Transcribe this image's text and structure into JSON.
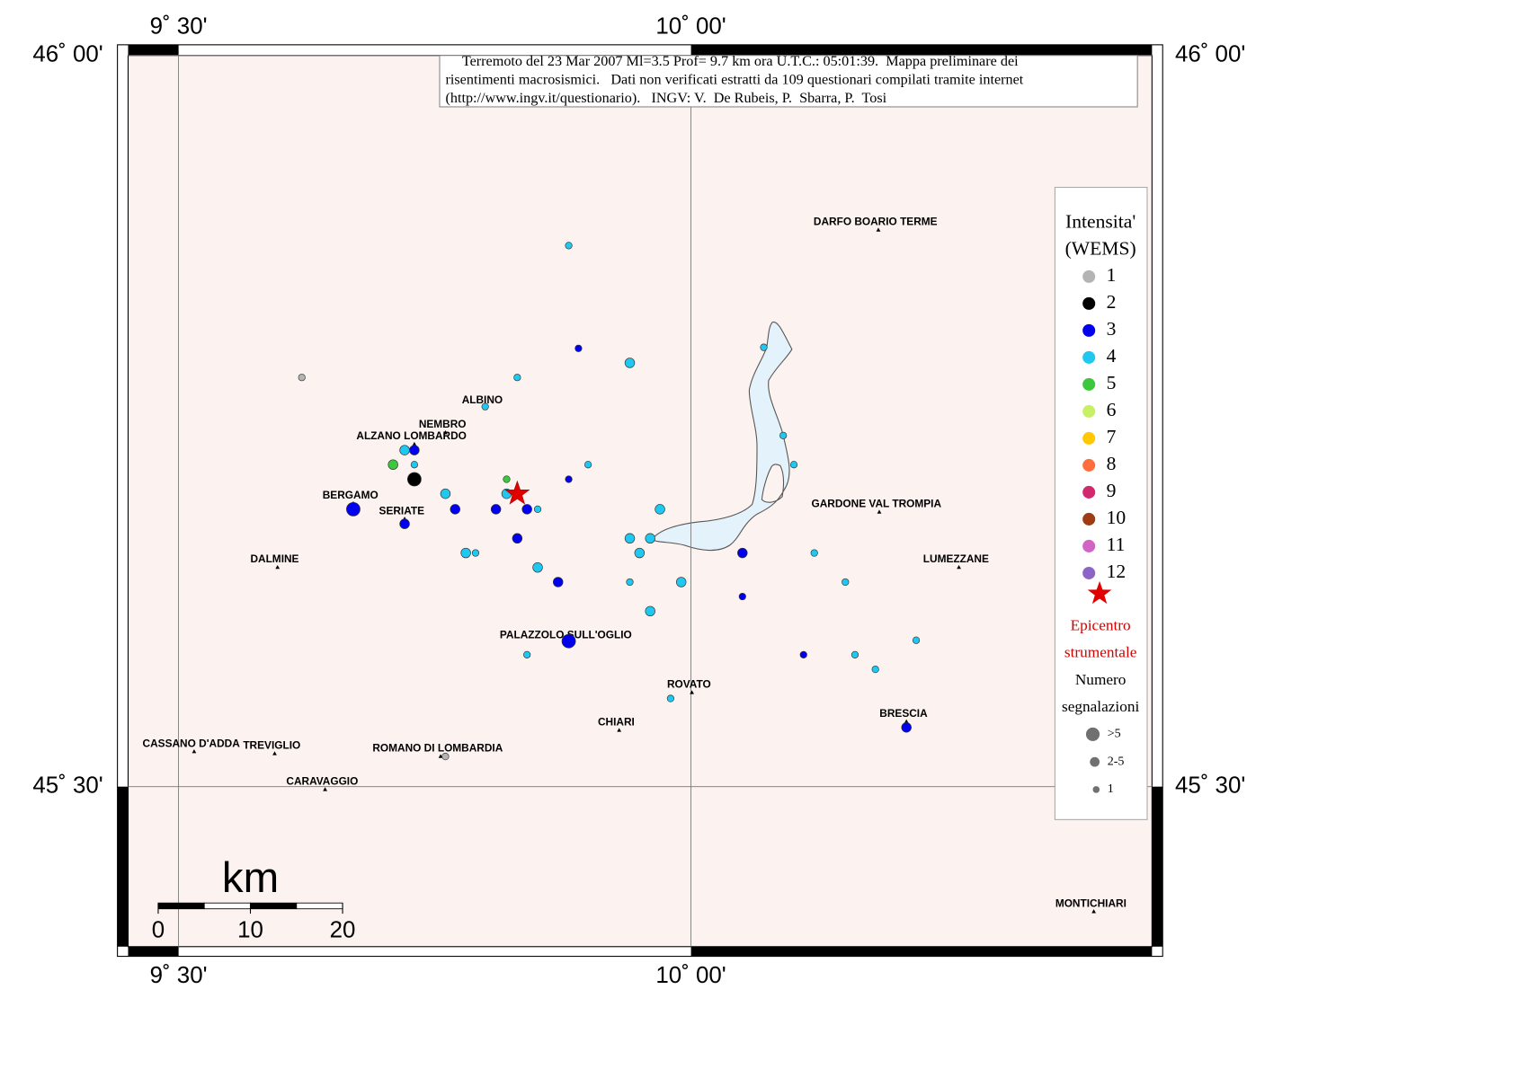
{
  "map": {
    "title": [
      "Terremoto del 23 Mar 2007 Ml=3.5 Prof= 9.7 km ora U.T.C.: 05:01:39.  Mappa preliminare dei",
      "risentimenti macrosismici.   Dati non verificati estratti da 109 questionari compilati tramite internet",
      "(http://www.ingv.it/questionario).   INGV: V.  De Rubeis, P.  Sbarra, P.  Tosi"
    ],
    "xlim": [
      9.4508,
      10.4498
    ],
    "ylim": [
      45.3906,
      46.0
    ],
    "xticks": [
      {
        "value": 9.5,
        "label": "9˚ 30'"
      },
      {
        "value": 10,
        "label": "10˚ 00'"
      }
    ],
    "yticks": [
      {
        "value": 45.5,
        "label": "45˚ 30'"
      },
      {
        "value": 46,
        "label": "46˚ 00'"
      }
    ],
    "grid": true,
    "scale": {
      "label": "km",
      "ticks": [
        0,
        10,
        20
      ]
    },
    "legend": {
      "title": [
        "Intensita'",
        "(WEMS)"
      ],
      "levels": [
        {
          "value": 1,
          "color": "#b4b4b4"
        },
        {
          "value": 2,
          "color": "#000000"
        },
        {
          "value": 3,
          "color": "#0000ee"
        },
        {
          "value": 4,
          "color": "#1ec8f0"
        },
        {
          "value": 5,
          "color": "#3cc83c"
        },
        {
          "value": 6,
          "color": "#c8f064"
        },
        {
          "value": 7,
          "color": "#ffc800"
        },
        {
          "value": 8,
          "color": "#ff6e3c"
        },
        {
          "value": 9,
          "color": "#d2286e"
        },
        {
          "value": 10,
          "color": "#a03c14"
        },
        {
          "value": 11,
          "color": "#d264c8"
        },
        {
          "value": 12,
          "color": "#8c64c8"
        }
      ],
      "epicenter": [
        "Epicentro",
        "strumentale"
      ],
      "count_title": [
        "Numero",
        "segnalazioni"
      ],
      "counts": [
        ">5",
        "2-5",
        "1"
      ]
    },
    "epicenter": {
      "lon": 9.8305,
      "lat": 45.7003
    },
    "places": [
      {
        "name": "DARFO BOARIO TERME",
        "lon": 10.1828,
        "lat": 45.8806
      },
      {
        "name": "ALBINO",
        "lon": 9.7992,
        "lat": 45.7586
      },
      {
        "name": "NEMBRO",
        "lon": 9.7604,
        "lat": 45.742
      },
      {
        "name": "ALZANO LOMBARDO",
        "lon": 9.7301,
        "lat": 45.7341
      },
      {
        "name": "BERGAMO",
        "lon": 9.6705,
        "lat": 45.6936
      },
      {
        "name": "SERIATE",
        "lon": 9.7206,
        "lat": 45.683
      },
      {
        "name": "GARDONE VAL TROMPIA",
        "lon": 10.1837,
        "lat": 45.6877
      },
      {
        "name": "DALMINE",
        "lon": 9.5966,
        "lat": 45.6499
      },
      {
        "name": "LUMEZZANE",
        "lon": 10.2614,
        "lat": 45.6499
      },
      {
        "name": "PALAZZOLO SULL'OGLIO",
        "lon": 9.8807,
        "lat": 45.5981
      },
      {
        "name": "ROVATO",
        "lon": 10.0009,
        "lat": 45.5643
      },
      {
        "name": "CHIARI",
        "lon": 9.9299,
        "lat": 45.5385
      },
      {
        "name": "BRESCIA",
        "lon": 10.2102,
        "lat": 45.5444
      },
      {
        "name": "CASSANO D'ADDA",
        "lon": 9.5152,
        "lat": 45.5239
      },
      {
        "name": "TREVIGLIO",
        "lon": 9.5938,
        "lat": 45.5225
      },
      {
        "name": "ROMANO DI LOMBARDIA",
        "lon": 9.7557,
        "lat": 45.5206
      },
      {
        "name": "CARAVAGGIO",
        "lon": 9.643,
        "lat": 45.498
      },
      {
        "name": "MONTICHIARI",
        "lon": 10.393,
        "lat": 45.4145
      }
    ],
    "observations": [
      {
        "lon": 9.8807,
        "lat": 45.87,
        "intensity": 4,
        "reports": "1"
      },
      {
        "lon": 9.8902,
        "lat": 45.7997,
        "intensity": 3,
        "reports": "1"
      },
      {
        "lon": 9.9403,
        "lat": 45.7898,
        "intensity": 4,
        "reports": "2-5"
      },
      {
        "lon": 9.8305,
        "lat": 45.7798,
        "intensity": 4,
        "reports": "1"
      },
      {
        "lon": 9.6203,
        "lat": 45.7798,
        "intensity": 1,
        "reports": "1"
      },
      {
        "lon": 9.7992,
        "lat": 45.7599,
        "intensity": 4,
        "reports": "1"
      },
      {
        "lon": 10.071,
        "lat": 45.8004,
        "intensity": 4,
        "reports": "1"
      },
      {
        "lon": 9.7301,
        "lat": 45.7301,
        "intensity": 3,
        "reports": "2-5"
      },
      {
        "lon": 9.7206,
        "lat": 45.7301,
        "intensity": 4,
        "reports": "2-5"
      },
      {
        "lon": 9.7301,
        "lat": 45.7202,
        "intensity": 4,
        "reports": "1"
      },
      {
        "lon": 9.7093,
        "lat": 45.7202,
        "intensity": 5,
        "reports": "2-5"
      },
      {
        "lon": 9.7301,
        "lat": 45.7102,
        "intensity": 2,
        "reports": ">5"
      },
      {
        "lon": 9.8201,
        "lat": 45.7102,
        "intensity": 5,
        "reports": "1"
      },
      {
        "lon": 9.8807,
        "lat": 45.7102,
        "intensity": 3,
        "reports": "1"
      },
      {
        "lon": 9.8996,
        "lat": 45.7202,
        "intensity": 4,
        "reports": "1"
      },
      {
        "lon": 10.09,
        "lat": 45.7401,
        "intensity": 4,
        "reports": "1"
      },
      {
        "lon": 10.1004,
        "lat": 45.7202,
        "intensity": 4,
        "reports": "1"
      },
      {
        "lon": 9.7604,
        "lat": 45.7003,
        "intensity": 4,
        "reports": "2-5"
      },
      {
        "lon": 9.8201,
        "lat": 45.7003,
        "intensity": 4,
        "reports": "2-5"
      },
      {
        "lon": 9.6705,
        "lat": 45.6897,
        "intensity": 3,
        "reports": ">5"
      },
      {
        "lon": 9.7699,
        "lat": 45.6897,
        "intensity": 3,
        "reports": "2-5"
      },
      {
        "lon": 9.8097,
        "lat": 45.6897,
        "intensity": 3,
        "reports": "2-5"
      },
      {
        "lon": 9.84,
        "lat": 45.6897,
        "intensity": 3,
        "reports": "2-5"
      },
      {
        "lon": 9.8504,
        "lat": 45.6897,
        "intensity": 4,
        "reports": "1"
      },
      {
        "lon": 9.9697,
        "lat": 45.6897,
        "intensity": 4,
        "reports": "2-5"
      },
      {
        "lon": 9.7206,
        "lat": 45.6797,
        "intensity": 3,
        "reports": "2-5"
      },
      {
        "lon": 9.8305,
        "lat": 45.6698,
        "intensity": 3,
        "reports": "2-5"
      },
      {
        "lon": 9.9403,
        "lat": 45.6698,
        "intensity": 4,
        "reports": "2-5"
      },
      {
        "lon": 9.9602,
        "lat": 45.6698,
        "intensity": 4,
        "reports": "2-5"
      },
      {
        "lon": 9.7803,
        "lat": 45.6598,
        "intensity": 4,
        "reports": "2-5"
      },
      {
        "lon": 9.7898,
        "lat": 45.6598,
        "intensity": 4,
        "reports": "1"
      },
      {
        "lon": 9.9498,
        "lat": 45.6598,
        "intensity": 4,
        "reports": "2-5"
      },
      {
        "lon": 10.0502,
        "lat": 45.6598,
        "intensity": 3,
        "reports": "2-5"
      },
      {
        "lon": 10.1203,
        "lat": 45.6598,
        "intensity": 4,
        "reports": "1"
      },
      {
        "lon": 9.8504,
        "lat": 45.6499,
        "intensity": 4,
        "reports": "2-5"
      },
      {
        "lon": 9.8703,
        "lat": 45.6399,
        "intensity": 3,
        "reports": "2-5"
      },
      {
        "lon": 9.9403,
        "lat": 45.6399,
        "intensity": 4,
        "reports": "1"
      },
      {
        "lon": 9.9905,
        "lat": 45.6399,
        "intensity": 4,
        "reports": "2-5"
      },
      {
        "lon": 10.1506,
        "lat": 45.6399,
        "intensity": 4,
        "reports": "1"
      },
      {
        "lon": 10.0502,
        "lat": 45.63,
        "intensity": 3,
        "reports": "1"
      },
      {
        "lon": 9.9602,
        "lat": 45.62,
        "intensity": 4,
        "reports": "2-5"
      },
      {
        "lon": 9.8807,
        "lat": 45.5995,
        "intensity": 3,
        "reports": ">5"
      },
      {
        "lon": 10.2197,
        "lat": 45.6001,
        "intensity": 4,
        "reports": "1"
      },
      {
        "lon": 9.84,
        "lat": 45.5902,
        "intensity": 4,
        "reports": "1"
      },
      {
        "lon": 10.1098,
        "lat": 45.5902,
        "intensity": 3,
        "reports": "1"
      },
      {
        "lon": 10.16,
        "lat": 45.5902,
        "intensity": 4,
        "reports": "1"
      },
      {
        "lon": 10.1799,
        "lat": 45.5802,
        "intensity": 4,
        "reports": "1"
      },
      {
        "lon": 9.9801,
        "lat": 45.5603,
        "intensity": 4,
        "reports": "1"
      },
      {
        "lon": 10.2102,
        "lat": 45.5405,
        "intensity": 3,
        "reports": "2-5"
      },
      {
        "lon": 9.7604,
        "lat": 45.5206,
        "intensity": 1,
        "reports": "1"
      }
    ]
  }
}
